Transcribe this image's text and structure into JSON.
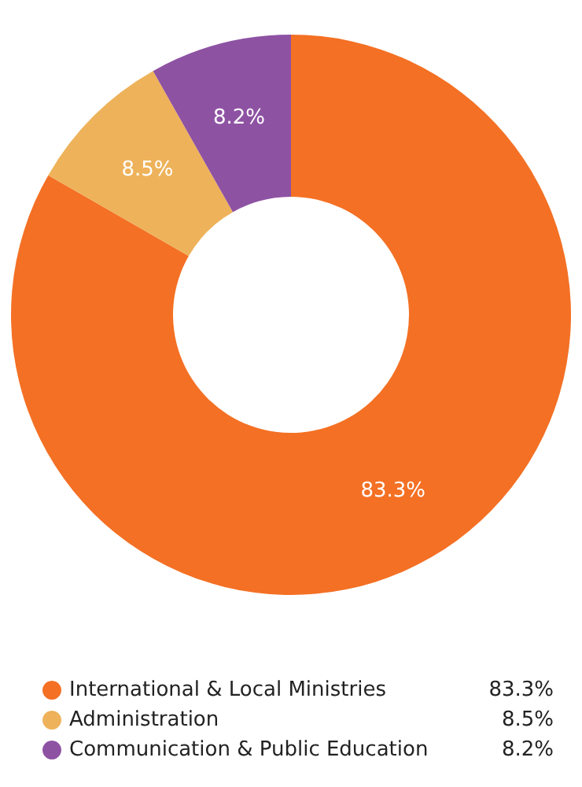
{
  "chart_data": {
    "type": "donut",
    "categories": [
      "International & Local Ministries",
      "Administration",
      "Communication & Public Education"
    ],
    "values": [
      83.3,
      8.5,
      8.2
    ],
    "colors": [
      "#f47024",
      "#eeb25a",
      "#8e52a3"
    ],
    "value_labels": [
      "83.3%",
      "8.5%",
      "8.2%"
    ],
    "legend": "bottom"
  }
}
